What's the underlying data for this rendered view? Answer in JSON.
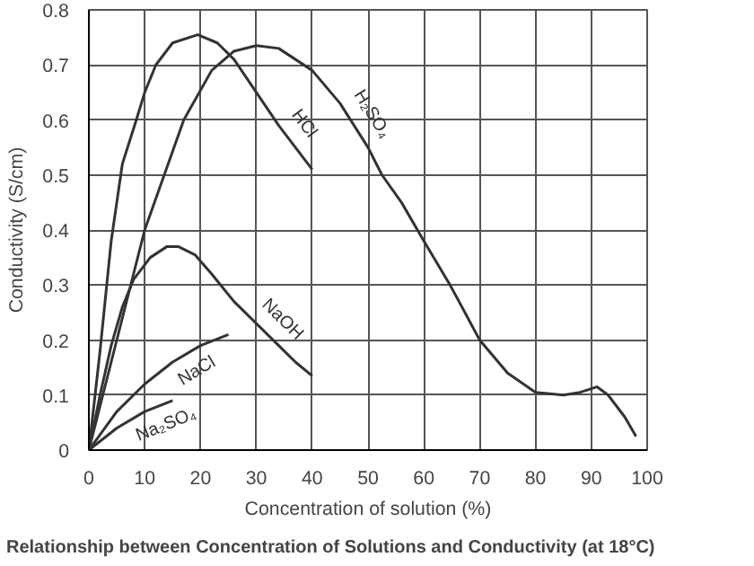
{
  "chart_data": {
    "type": "line",
    "title": "Relationship between Concentration of Solutions and Conductivity (at 18°C)",
    "xlabel": "Concentration of solution (%)",
    "ylabel": "Conductivity (S/cm)",
    "xlim": [
      0,
      100
    ],
    "ylim": [
      0,
      0.8
    ],
    "xticks": [
      0,
      10,
      20,
      30,
      40,
      50,
      60,
      70,
      80,
      90,
      100
    ],
    "yticks": [
      0,
      0.1,
      0.2,
      0.3,
      0.4,
      0.5,
      0.6,
      0.7,
      0.8
    ],
    "grid": true,
    "series": [
      {
        "name": "H₂SO₄",
        "color": "#333333",
        "x": [
          0,
          2,
          5,
          10,
          17,
          22,
          26,
          30,
          34,
          40,
          45,
          50,
          52.5,
          56,
          60,
          64.7,
          70,
          75,
          80,
          85,
          88,
          91,
          93,
          96,
          98
        ],
        "values": [
          0,
          0.08,
          0.2,
          0.4,
          0.6,
          0.69,
          0.725,
          0.735,
          0.73,
          0.69,
          0.63,
          0.55,
          0.5,
          0.45,
          0.38,
          0.3,
          0.2,
          0.14,
          0.105,
          0.1,
          0.105,
          0.115,
          0.1,
          0.06,
          0.025
        ]
      },
      {
        "name": "HCl",
        "color": "#333333",
        "x": [
          0,
          2,
          4,
          6,
          8.5,
          10,
          12,
          15,
          19.5,
          23,
          26,
          30,
          34,
          37,
          40
        ],
        "values": [
          0,
          0.18,
          0.38,
          0.52,
          0.6,
          0.65,
          0.7,
          0.74,
          0.755,
          0.74,
          0.71,
          0.65,
          0.59,
          0.55,
          0.51
        ]
      },
      {
        "name": "NaOH",
        "color": "#333333",
        "x": [
          0,
          2,
          4,
          6,
          8,
          11,
          14,
          16,
          19,
          22,
          26,
          30,
          34,
          37,
          40
        ],
        "values": [
          0,
          0.1,
          0.19,
          0.26,
          0.31,
          0.35,
          0.37,
          0.37,
          0.355,
          0.32,
          0.27,
          0.23,
          0.19,
          0.16,
          0.135
        ]
      },
      {
        "name": "NaCl",
        "color": "#333333",
        "x": [
          0,
          5,
          10,
          15,
          20,
          25
        ],
        "values": [
          0,
          0.07,
          0.12,
          0.16,
          0.19,
          0.21
        ]
      },
      {
        "name": "Na₂SO₄",
        "color": "#333333",
        "x": [
          0,
          5,
          10,
          15
        ],
        "values": [
          0,
          0.04,
          0.07,
          0.09
        ]
      }
    ]
  }
}
